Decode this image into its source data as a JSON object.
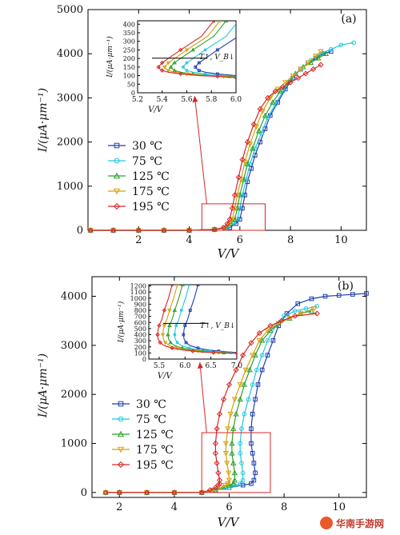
{
  "chart_data": [
    {
      "type": "line",
      "panel_label": "(a)",
      "xlabel": "V/V",
      "ylabel": "I/(μA·μm⁻¹)",
      "xlim": [
        0,
        11
      ],
      "ylim": [
        0,
        5000
      ],
      "xticks": [
        2,
        4,
        6,
        8,
        10
      ],
      "yticks": [
        0,
        1000,
        2000,
        3000,
        4000,
        5000
      ],
      "legend_position": "center-left",
      "series": [
        {
          "name": "30 ℃",
          "color": "#1f3fae",
          "marker": "square",
          "x": [
            0.1,
            1,
            2,
            3,
            4,
            5,
            5.6,
            5.85,
            6,
            6.1,
            6.2,
            6.3,
            6.45,
            6.6,
            6.8,
            7,
            7.2,
            7.5,
            7.8,
            8.1,
            8.4,
            8.7,
            9,
            9.3,
            9.6
          ],
          "y": [
            0,
            0,
            0,
            0,
            0,
            20,
            60,
            150,
            250,
            500,
            800,
            1100,
            1400,
            1700,
            2000,
            2300,
            2600,
            2900,
            3200,
            3450,
            3650,
            3800,
            3900,
            4000,
            4050
          ]
        },
        {
          "name": "75 ℃",
          "color": "#1ec8e0",
          "marker": "circle",
          "x": [
            0.1,
            1,
            2,
            3,
            4,
            5,
            5.5,
            5.75,
            5.9,
            6,
            6.1,
            6.25,
            6.4,
            6.6,
            6.85,
            7.1,
            7.4,
            7.7,
            8,
            8.4,
            8.8,
            9.2,
            9.6,
            10,
            10.5
          ],
          "y": [
            0,
            0,
            0,
            0,
            0,
            20,
            60,
            150,
            250,
            500,
            800,
            1150,
            1500,
            1850,
            2200,
            2550,
            2850,
            3150,
            3400,
            3650,
            3850,
            4000,
            4100,
            4200,
            4250
          ]
        },
        {
          "name": "125 ℃",
          "color": "#2ca02c",
          "marker": "triangle-up",
          "x": [
            0.1,
            1,
            2,
            3,
            4,
            5,
            5.45,
            5.65,
            5.8,
            5.9,
            6,
            6.15,
            6.3,
            6.5,
            6.75,
            7,
            7.3,
            7.6,
            7.9,
            8.2,
            8.5,
            8.8,
            9.1,
            9.4
          ],
          "y": [
            0,
            0,
            0,
            0,
            0,
            20,
            60,
            150,
            250,
            500,
            800,
            1150,
            1500,
            1850,
            2250,
            2600,
            2900,
            3150,
            3350,
            3550,
            3700,
            3800,
            3900,
            4000
          ]
        },
        {
          "name": "175 ℃",
          "color": "#d4a10c",
          "marker": "triangle-down",
          "x": [
            0.1,
            1,
            2,
            3,
            4,
            5,
            5.4,
            5.58,
            5.7,
            5.8,
            5.9,
            6.05,
            6.2,
            6.4,
            6.65,
            6.9,
            7.2,
            7.5,
            7.8,
            8.1,
            8.4,
            8.7,
            9,
            9.2
          ],
          "y": [
            0,
            0,
            0,
            0,
            0,
            20,
            60,
            150,
            250,
            500,
            800,
            1150,
            1550,
            1950,
            2350,
            2700,
            3000,
            3200,
            3350,
            3500,
            3650,
            3800,
            3950,
            4050
          ]
        },
        {
          "name": "195 ℃",
          "color": "#d62728",
          "marker": "diamond",
          "x": [
            0.1,
            1,
            2,
            3,
            4,
            5,
            5.35,
            5.5,
            5.6,
            5.7,
            5.8,
            5.95,
            6.1,
            6.3,
            6.55,
            6.8,
            7.1,
            7.4,
            7.7,
            8,
            8.3,
            8.6,
            8.9,
            9.2
          ],
          "y": [
            0,
            0,
            0,
            0,
            0,
            20,
            60,
            150,
            250,
            500,
            800,
            1200,
            1600,
            2000,
            2400,
            2750,
            3000,
            3150,
            3250,
            3350,
            3450,
            3550,
            3650,
            3750
          ]
        }
      ],
      "inset": {
        "xlabel": "V/V",
        "ylabel": "I/(μA·μm⁻¹)",
        "xlim": [
          5.2,
          6.0
        ],
        "ylim": [
          0,
          420
        ],
        "xticks": [
          5.2,
          5.4,
          5.6,
          5.8,
          6.0
        ],
        "yticks": [
          0,
          50,
          100,
          150,
          200,
          250,
          300,
          350,
          400
        ],
        "annotation": "T↑, V_B↓",
        "x_shift": [
          0.3,
          0.2,
          0.1,
          0.05,
          0
        ],
        "x": [
          5.82,
          5.72,
          5.55,
          5.45,
          5.4,
          5.38,
          5.37,
          5.38,
          5.4,
          5.45,
          5.55,
          5.7,
          5.85,
          5.95,
          6.0
        ],
        "y": [
          420,
          330,
          250,
          200,
          175,
          160,
          150,
          140,
          130,
          120,
          110,
          100,
          95,
          90,
          88
        ]
      },
      "zoom_box": {
        "x": [
          4.5,
          7.0
        ],
        "y": [
          0,
          600
        ]
      }
    },
    {
      "type": "line",
      "panel_label": "(b)",
      "xlabel": "V/V",
      "ylabel": "I/(μA·μm⁻¹)",
      "xlim": [
        1,
        11
      ],
      "ylim": [
        -100,
        4400
      ],
      "xticks": [
        2,
        4,
        6,
        8,
        10
      ],
      "yticks": [
        0,
        1000,
        2000,
        3000,
        4000
      ],
      "legend_position": "center-left",
      "series": [
        {
          "name": "30 ℃",
          "color": "#1f3fae",
          "marker": "square",
          "x": [
            1.5,
            2,
            3,
            4,
            5,
            5.5,
            6,
            6.5,
            6.8,
            6.9,
            6.95,
            6.9,
            6.85,
            6.8,
            6.8,
            6.85,
            6.95,
            7.05,
            7.2,
            7.4,
            7.6,
            7.8,
            8.1,
            8.5,
            9,
            9.5,
            10,
            10.5,
            11
          ],
          "y": [
            0,
            0,
            0,
            0,
            0,
            50,
            100,
            150,
            180,
            250,
            400,
            600,
            800,
            1000,
            1300,
            1600,
            1900,
            2200,
            2500,
            2800,
            3100,
            3400,
            3650,
            3850,
            3950,
            4000,
            4020,
            4040,
            4060
          ]
        },
        {
          "name": "75 ℃",
          "color": "#1ec8e0",
          "marker": "circle",
          "x": [
            1.5,
            2,
            3,
            4,
            5,
            5.5,
            6,
            6.2,
            6.4,
            6.5,
            6.5,
            6.45,
            6.4,
            6.4,
            6.45,
            6.55,
            6.7,
            6.85,
            7,
            7.2,
            7.4,
            7.7,
            8,
            8.4,
            8.8,
            9.2
          ],
          "y": [
            0,
            0,
            0,
            0,
            0,
            50,
            100,
            150,
            180,
            250,
            400,
            600,
            800,
            1000,
            1300,
            1600,
            1900,
            2200,
            2500,
            2800,
            3100,
            3400,
            3600,
            3700,
            3750,
            3800
          ]
        },
        {
          "name": "125 ℃",
          "color": "#2ca02c",
          "marker": "triangle-up",
          "x": [
            1.5,
            2,
            3,
            4,
            5,
            5.5,
            5.8,
            6,
            6.15,
            6.2,
            6.2,
            6.15,
            6.1,
            6.1,
            6.15,
            6.25,
            6.4,
            6.55,
            6.75,
            6.95,
            7.2,
            7.5,
            7.8,
            8.2,
            8.6,
            9
          ],
          "y": [
            0,
            0,
            0,
            0,
            0,
            50,
            100,
            150,
            180,
            250,
            400,
            600,
            800,
            1000,
            1300,
            1600,
            1900,
            2200,
            2500,
            2800,
            3100,
            3300,
            3450,
            3550,
            3650,
            3700
          ]
        },
        {
          "name": "175 ℃",
          "color": "#d4a10c",
          "marker": "triangle-down",
          "x": [
            1.5,
            2,
            3,
            4,
            5,
            5.4,
            5.7,
            5.85,
            5.95,
            6,
            5.98,
            5.92,
            5.88,
            5.88,
            5.95,
            6.05,
            6.2,
            6.4,
            6.6,
            6.85,
            7.1,
            7.4,
            7.8,
            8.2,
            8.6,
            9.1
          ],
          "y": [
            0,
            0,
            0,
            0,
            0,
            50,
            100,
            150,
            180,
            250,
            400,
            600,
            800,
            1000,
            1300,
            1600,
            1900,
            2200,
            2500,
            2800,
            3100,
            3300,
            3450,
            3550,
            3650,
            3750
          ]
        },
        {
          "name": "195 ℃",
          "color": "#d62728",
          "marker": "diamond",
          "x": [
            1.5,
            2,
            3,
            4,
            5,
            5.3,
            5.5,
            5.6,
            5.65,
            5.65,
            5.6,
            5.55,
            5.5,
            5.5,
            5.55,
            5.65,
            5.8,
            6,
            6.25,
            6.5,
            6.8,
            7.1,
            7.5,
            7.9,
            8.4,
            9.2
          ],
          "y": [
            0,
            0,
            0,
            0,
            0,
            50,
            100,
            150,
            180,
            250,
            400,
            600,
            800,
            1000,
            1300,
            1600,
            1900,
            2200,
            2500,
            2800,
            3050,
            3250,
            3400,
            3500,
            3600,
            3650
          ]
        }
      ],
      "inset": {
        "xlabel": "V/V",
        "ylabel": "I/(μA·μm⁻¹)",
        "xlim": [
          5.3,
          7.0
        ],
        "ylim": [
          0,
          1220
        ],
        "xticks": [
          5.5,
          6.0,
          6.5,
          7.0
        ],
        "yticks": [
          0,
          100,
          200,
          300,
          400,
          500,
          600,
          700,
          800,
          900,
          1000,
          1100,
          1200
        ],
        "annotation": "T↑, V_B↓",
        "x_shift": [
          0.5,
          0.33,
          0.2,
          0.1,
          0
        ],
        "x": [
          5.75,
          5.68,
          5.6,
          5.55,
          5.5,
          5.48,
          5.47,
          5.48,
          5.52,
          5.6,
          5.75,
          5.95,
          6.15,
          6.35,
          6.55,
          6.75,
          7.0
        ],
        "y": [
          1220,
          1000,
          800,
          650,
          550,
          480,
          400,
          330,
          270,
          220,
          180,
          150,
          130,
          115,
          105,
          100,
          95
        ]
      },
      "zoom_box": {
        "x": [
          5.0,
          7.5
        ],
        "y": [
          0,
          1220
        ]
      }
    }
  ],
  "watermark": {
    "text": "华南手游网"
  }
}
